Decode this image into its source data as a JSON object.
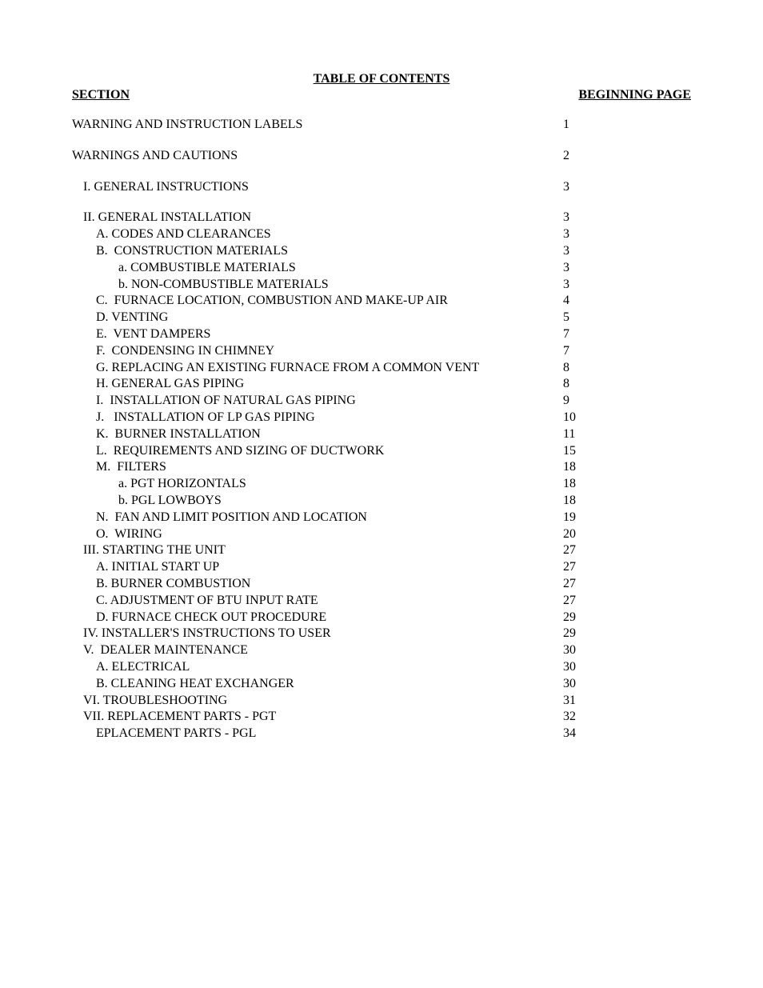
{
  "title": "TABLE OF CONTENTS",
  "header_left": "SECTION",
  "header_right": "BEGINNING PAGE",
  "entries": [
    {
      "label": "WARNING AND INSTRUCTION LABELS",
      "page": "1",
      "indent": 0,
      "spacer_after": true
    },
    {
      "label": "WARNINGS AND CAUTIONS",
      "page": "2",
      "indent": 0,
      "spacer_after": true
    },
    {
      "label": "I. GENERAL INSTRUCTIONS",
      "page": "3",
      "indent": 1,
      "spacer_after": true
    },
    {
      "label": "II. GENERAL INSTALLATION",
      "page": "3",
      "indent": 1
    },
    {
      "label": "A. CODES AND CLEARANCES",
      "page": "3",
      "indent": 2
    },
    {
      "label": "B.  CONSTRUCTION MATERIALS",
      "page": "3",
      "indent": 2
    },
    {
      "label": "a. COMBUSTIBLE MATERIALS",
      "page": "3",
      "indent": 3
    },
    {
      "label": "b. NON-COMBUSTIBLE MATERIALS",
      "page": "3",
      "indent": 3
    },
    {
      "label": "C.  FURNACE LOCATION, COMBUSTION AND MAKE-UP AIR",
      "page": "4",
      "indent": 2
    },
    {
      "label": "D. VENTING",
      "page": "5",
      "indent": 2
    },
    {
      "label": "E.  VENT DAMPERS",
      "page": "7",
      "indent": 2
    },
    {
      "label": "F.  CONDENSING IN CHIMNEY",
      "page": "7",
      "indent": 2
    },
    {
      "label": "G. REPLACING AN EXISTING FURNACE FROM A COMMON VENT",
      "page": "8",
      "indent": 2
    },
    {
      "label": "H. GENERAL GAS PIPING",
      "page": "8",
      "indent": 2
    },
    {
      "label": "I.  INSTALLATION OF NATURAL GAS PIPING",
      "page": "9",
      "indent": 2
    },
    {
      "label": "J.   INSTALLATION OF LP GAS PIPING",
      "page": "10",
      "indent": 2
    },
    {
      "label": "K.  BURNER INSTALLATION",
      "page": "11",
      "indent": 2
    },
    {
      "label": "L.  REQUIREMENTS AND SIZING OF DUCTWORK",
      "page": "15",
      "indent": 2
    },
    {
      "label": "M.  FILTERS",
      "page": "18",
      "indent": 2
    },
    {
      "label": "a. PGT HORIZONTALS",
      "page": "18",
      "indent": 3
    },
    {
      "label": "b. PGL LOWBOYS",
      "page": "18",
      "indent": 3
    },
    {
      "label": "N.  FAN AND LIMIT POSITION AND LOCATION",
      "page": "19",
      "indent": 2
    },
    {
      "label": "O.  WIRING",
      "page": "20",
      "indent": 2
    },
    {
      "label": "III. STARTING THE UNIT",
      "page": "27",
      "indent": 1
    },
    {
      "label": "A. INITIAL START UP",
      "page": "27",
      "indent": 2
    },
    {
      "label": "B. BURNER COMBUSTION",
      "page": "27",
      "indent": 2
    },
    {
      "label": "C. ADJUSTMENT OF BTU INPUT RATE",
      "page": "27",
      "indent": 2
    },
    {
      "label": "D. FURNACE CHECK OUT PROCEDURE",
      "page": "29",
      "indent": 2
    },
    {
      "label": "IV. INSTALLER'S INSTRUCTIONS TO USER",
      "page": "29",
      "indent": 1
    },
    {
      "label": "V.  DEALER MAINTENANCE",
      "page": "30",
      "indent": 1
    },
    {
      "label": "A. ELECTRICAL",
      "page": "30",
      "indent": 2
    },
    {
      "label": "B. CLEANING HEAT EXCHANGER",
      "page": "30",
      "indent": 2
    },
    {
      "label": "VI. TROUBLESHOOTING",
      "page": "31",
      "indent": 1
    },
    {
      "label": "VII. REPLACEMENT PARTS - PGT",
      "page": "32",
      "indent": 1
    },
    {
      "label": "EPLACEMENT PARTS - PGL",
      "page": "34",
      "indent": 2
    }
  ]
}
